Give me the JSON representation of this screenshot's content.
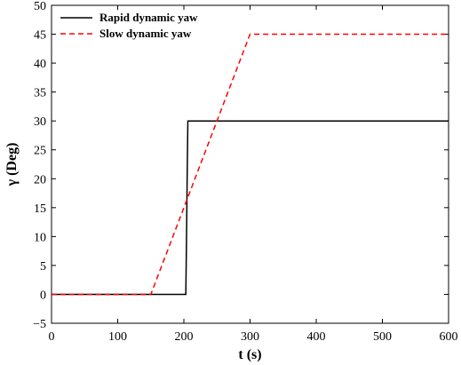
{
  "chart_data": {
    "type": "line",
    "title": "",
    "xlabel": "t (s)",
    "ylabel": "γ (Deg)",
    "xlim": [
      0,
      600
    ],
    "ylim": [
      -5,
      50
    ],
    "xticks": [
      0,
      100,
      200,
      300,
      400,
      500,
      600
    ],
    "yticks": [
      -5,
      0,
      5,
      10,
      15,
      20,
      25,
      30,
      35,
      40,
      45,
      50
    ],
    "grid": false,
    "legend_position": "top-left",
    "series": [
      {
        "name": "Rapid dynamic yaw",
        "color": "#000000",
        "style": "solid",
        "x": [
          0,
          200,
          203,
          204,
          205,
          206,
          600
        ],
        "y": [
          0,
          0,
          0,
          10,
          20,
          30,
          30
        ]
      },
      {
        "name": "Slow dynamic yaw",
        "color": "#ff0000",
        "style": "dashed",
        "x": [
          0,
          150,
          300,
          600
        ],
        "y": [
          0,
          0,
          45,
          45
        ]
      }
    ]
  }
}
